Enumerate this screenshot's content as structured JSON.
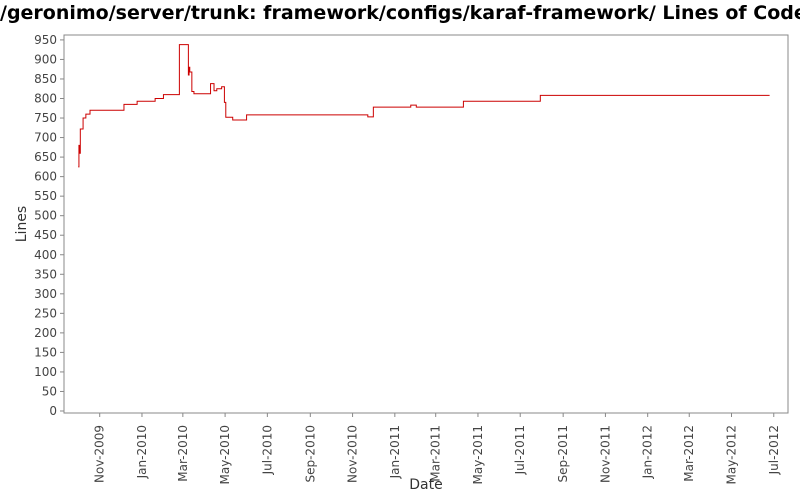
{
  "chart_data": {
    "type": "line",
    "title": "/geronimo/server/trunk: framework/configs/karaf-framework/ Lines of Code",
    "xlabel": "Date",
    "ylabel": "Lines",
    "ylim": [
      0,
      960
    ],
    "xlim": [
      "2009-09-22",
      "2012-07-10"
    ],
    "y_ticks": [
      0,
      50,
      100,
      150,
      200,
      250,
      300,
      350,
      400,
      450,
      500,
      550,
      600,
      650,
      700,
      750,
      800,
      850,
      900,
      950
    ],
    "x_ticks": [
      {
        "label": "Nov-2009",
        "date": "2009-11-01"
      },
      {
        "label": "Jan-2010",
        "date": "2010-01-01"
      },
      {
        "label": "Mar-2010",
        "date": "2010-03-01"
      },
      {
        "label": "May-2010",
        "date": "2010-05-01"
      },
      {
        "label": "Jul-2010",
        "date": "2010-07-01"
      },
      {
        "label": "Sep-2010",
        "date": "2010-09-01"
      },
      {
        "label": "Nov-2010",
        "date": "2010-11-01"
      },
      {
        "label": "Jan-2011",
        "date": "2011-01-01"
      },
      {
        "label": "Mar-2011",
        "date": "2011-03-01"
      },
      {
        "label": "May-2011",
        "date": "2011-05-01"
      },
      {
        "label": "Jul-2011",
        "date": "2011-07-01"
      },
      {
        "label": "Sep-2011",
        "date": "2011-09-01"
      },
      {
        "label": "Nov-2011",
        "date": "2011-11-01"
      },
      {
        "label": "Jan-2012",
        "date": "2012-01-01"
      },
      {
        "label": "Mar-2012",
        "date": "2012-03-01"
      },
      {
        "label": "May-2012",
        "date": "2012-05-01"
      },
      {
        "label": "Jul-2012",
        "date": "2012-07-01"
      }
    ],
    "grid": false,
    "line_color": "#cc0000",
    "series": [
      {
        "step": true,
        "points": [
          [
            "2009-10-01",
            625
          ],
          [
            "2009-10-02",
            680
          ],
          [
            "2009-10-03",
            660
          ],
          [
            "2009-10-04",
            722
          ],
          [
            "2009-10-08",
            750
          ],
          [
            "2009-10-12",
            760
          ],
          [
            "2009-10-18",
            770
          ],
          [
            "2009-12-06",
            785
          ],
          [
            "2009-12-25",
            793
          ],
          [
            "2010-01-20",
            800
          ],
          [
            "2010-02-01",
            810
          ],
          [
            "2010-02-24",
            938
          ],
          [
            "2010-03-09",
            860
          ],
          [
            "2010-03-10",
            880
          ],
          [
            "2010-03-11",
            868
          ],
          [
            "2010-03-14",
            818
          ],
          [
            "2010-03-17",
            812
          ],
          [
            "2010-04-10",
            838
          ],
          [
            "2010-04-15",
            820
          ],
          [
            "2010-04-19",
            825
          ],
          [
            "2010-04-26",
            830
          ],
          [
            "2010-04-30",
            790
          ],
          [
            "2010-05-02",
            752
          ],
          [
            "2010-05-12",
            745
          ],
          [
            "2010-06-01",
            758
          ],
          [
            "2010-11-23",
            753
          ],
          [
            "2010-12-01",
            778
          ],
          [
            "2011-01-24",
            783
          ],
          [
            "2011-02-01",
            778
          ],
          [
            "2011-04-10",
            793
          ],
          [
            "2011-07-30",
            808
          ],
          [
            "2012-06-25",
            808
          ]
        ]
      }
    ]
  }
}
